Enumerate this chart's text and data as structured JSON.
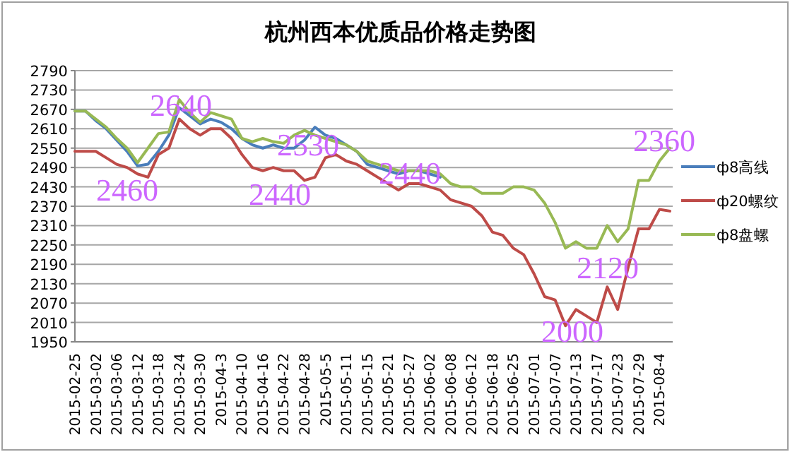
{
  "chart_data": {
    "type": "line",
    "title": "杭州西本优质品价格走势图",
    "categories": [
      "2015-02-25",
      null,
      "2015-03-02",
      null,
      "2015-03-06",
      null,
      "2015-03-12",
      null,
      "2015-03-18",
      null,
      "2015-03-24",
      null,
      "2015-03-30",
      null,
      "2015-04-3",
      null,
      "2015-04-10",
      null,
      "2015-04-16",
      null,
      "2015-04-22",
      null,
      "2015-04-28",
      null,
      "2015-05-5",
      null,
      "2015-05-11",
      null,
      "2015-05-15",
      null,
      "2015-05-21",
      null,
      "2015-05-27",
      null,
      "2015-06-02",
      null,
      "2015-06-08",
      null,
      "2015-06-12",
      null,
      "2015-06-18",
      null,
      "2015-06-25",
      null,
      "2015-07-01",
      null,
      "2015-07-07",
      null,
      "2015-07-13",
      null,
      "2015-07-17",
      null,
      "2015-07-23",
      null,
      "2015-07-29",
      null,
      "2015-08-4",
      null
    ],
    "series": [
      {
        "name": "ф8高线",
        "color": "#4a7ebb",
        "values": [
          2665,
          2665,
          2635,
          2610,
          2575,
          2540,
          2495,
          2500,
          2540,
          2590,
          2675,
          2650,
          2625,
          2640,
          2630,
          2610,
          2580,
          2560,
          2550,
          2560,
          2550,
          2550,
          2575,
          2615,
          2590,
          2580,
          2560,
          2540,
          2500,
          2490,
          2480,
          2470,
          2480,
          2480,
          2470,
          2460,
          null,
          null,
          null,
          null,
          null,
          null,
          null,
          null,
          null,
          null,
          null,
          null,
          null,
          null,
          null,
          null,
          null,
          null,
          null,
          null,
          null,
          null
        ]
      },
      {
        "name": "ф20螺纹",
        "color": "#be4b48",
        "values": [
          2540,
          2540,
          2540,
          2520,
          2500,
          2490,
          2470,
          2460,
          2530,
          2550,
          2640,
          2610,
          2590,
          2610,
          2610,
          2580,
          2530,
          2490,
          2480,
          2490,
          2480,
          2480,
          2450,
          2460,
          2520,
          2530,
          2510,
          2500,
          2480,
          2460,
          2440,
          2420,
          2440,
          2440,
          2430,
          2420,
          2390,
          2380,
          2370,
          2340,
          2290,
          2280,
          2240,
          2220,
          2160,
          2090,
          2080,
          2000,
          2050,
          2030,
          2010,
          2120,
          2050,
          2180,
          2300,
          2300,
          2360,
          2355
        ]
      },
      {
        "name": "ф8盘螺",
        "color": "#98b954",
        "values": [
          2665,
          2665,
          2640,
          2615,
          2580,
          2550,
          2505,
          2550,
          2595,
          2600,
          2700,
          2660,
          2630,
          2660,
          2650,
          2640,
          2580,
          2570,
          2580,
          2570,
          2565,
          2590,
          2605,
          2590,
          2580,
          2570,
          2560,
          2540,
          2510,
          2500,
          2490,
          2480,
          2480,
          2480,
          2480,
          2470,
          2440,
          2430,
          2430,
          2410,
          2410,
          2410,
          2430,
          2430,
          2420,
          2380,
          2320,
          2240,
          2260,
          2240,
          2240,
          2310,
          2260,
          2300,
          2450,
          2450,
          2510,
          2550
        ]
      }
    ],
    "ylim": [
      1950,
      2790
    ],
    "yticks": [
      1950,
      2010,
      2070,
      2130,
      2190,
      2250,
      2310,
      2370,
      2430,
      2490,
      2550,
      2610,
      2670,
      2730,
      2790
    ],
    "grid": "y",
    "legend": "right",
    "marker": "none",
    "line_style": "solid",
    "annotations": [
      "2460",
      "2640",
      "2530",
      "2440",
      "2440",
      "2000",
      "2120",
      "2360"
    ]
  }
}
